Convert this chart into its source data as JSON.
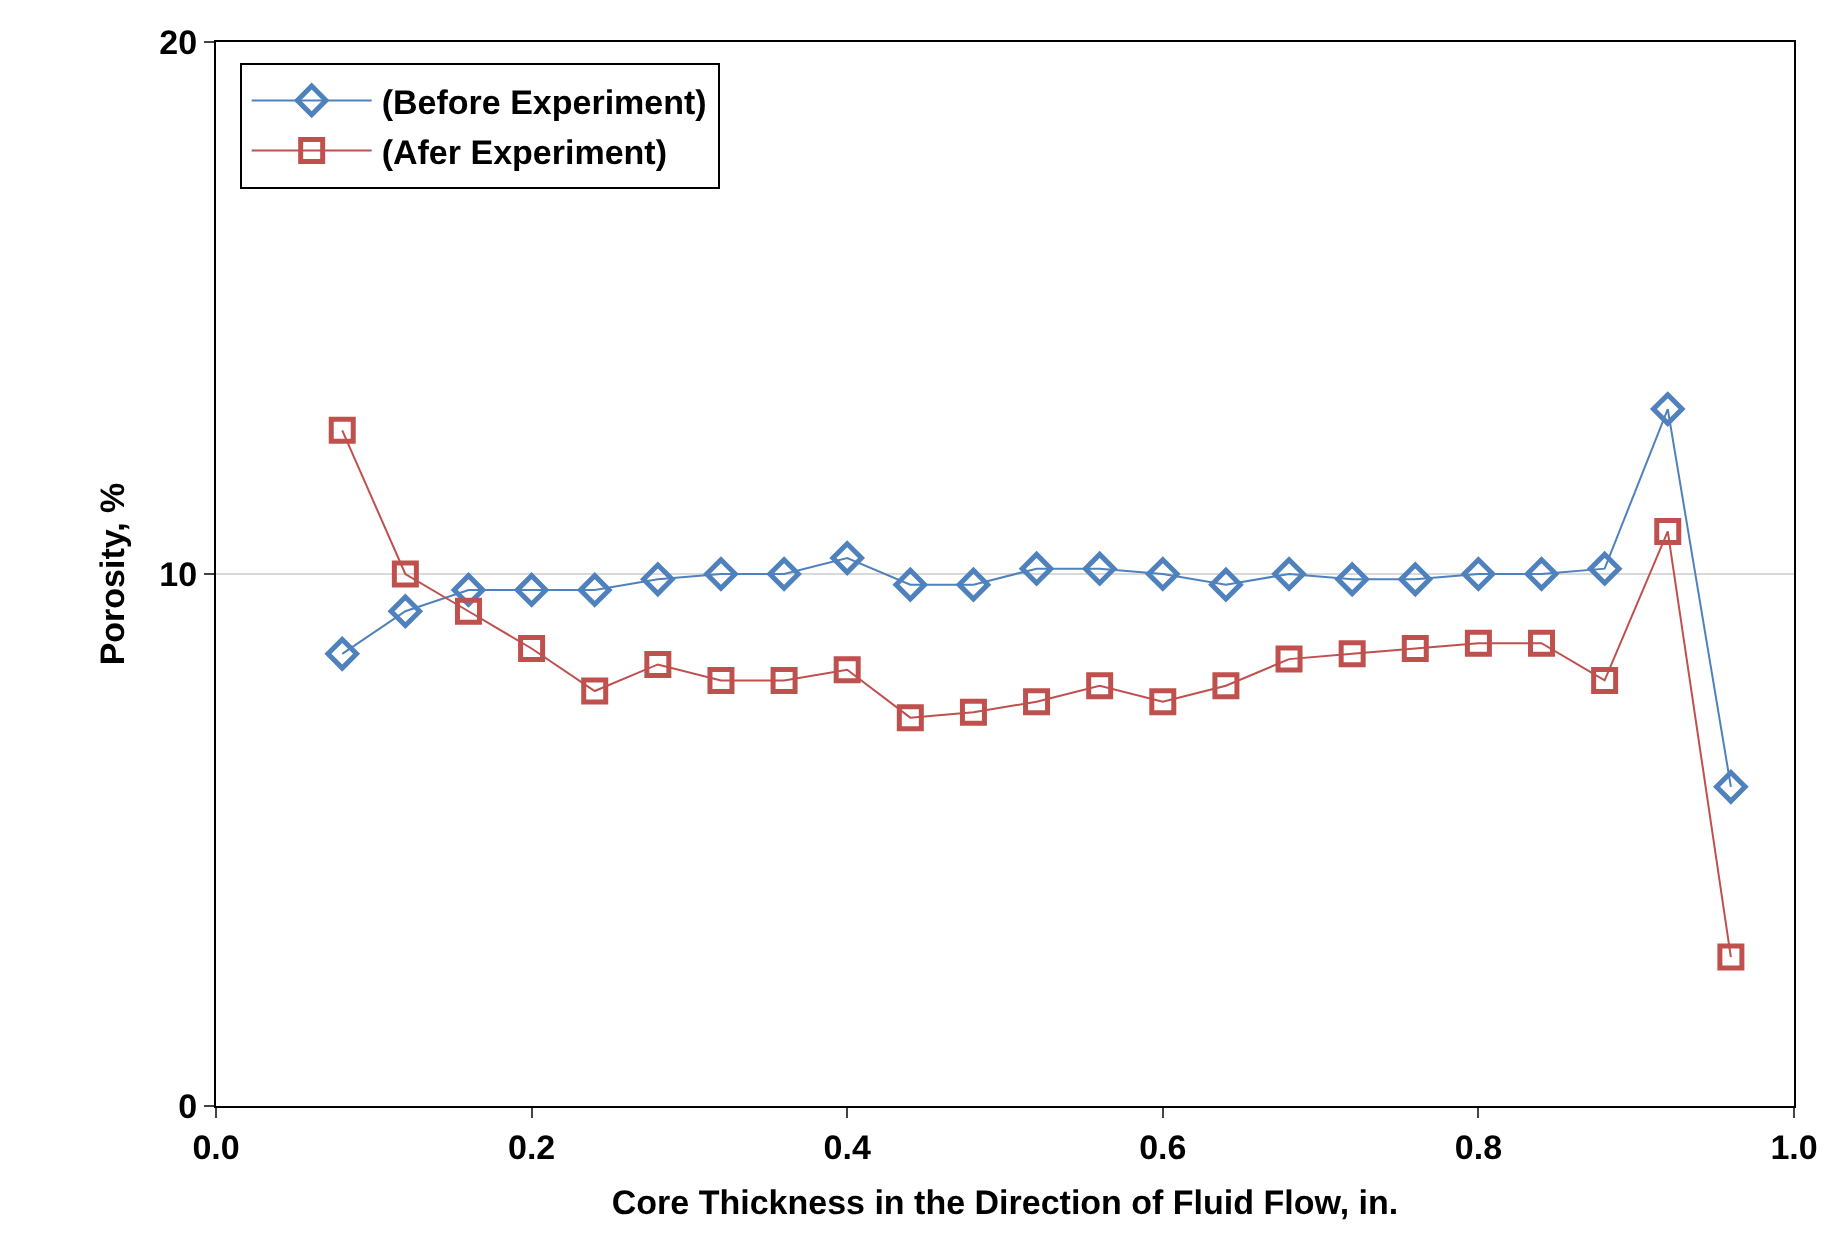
{
  "chart_data": {
    "type": "line",
    "xlabel": "Core Thickness in the Direction of Fluid Flow, in.",
    "ylabel": "Porosity, %",
    "xlim": [
      0,
      1
    ],
    "xticks": [
      {
        "value": 0,
        "label": "0.0"
      },
      {
        "value": 0.2,
        "label": "0.2"
      },
      {
        "value": 0.4,
        "label": "0.4"
      },
      {
        "value": 0.6,
        "label": "0.6"
      },
      {
        "value": 0.8,
        "label": "0.8"
      },
      {
        "value": 1,
        "label": "1.0"
      }
    ],
    "ylim": [
      0,
      20
    ],
    "yticks": [
      0,
      10,
      20
    ],
    "grid": "y",
    "legend": "top left",
    "line_style": "solid",
    "x": [
      0.08,
      0.12,
      0.16,
      0.2,
      0.24,
      0.28,
      0.32,
      0.36,
      0.4,
      0.44,
      0.48,
      0.52,
      0.56,
      0.6,
      0.64,
      0.68,
      0.72,
      0.76,
      0.8,
      0.84,
      0.88,
      0.92,
      0.96
    ],
    "series": [
      {
        "name": "(Before Experiment)",
        "color": "#4f81bd",
        "marker": "diamond",
        "values": [
          8.5,
          9.3,
          9.7,
          9.7,
          9.7,
          9.9,
          10.0,
          10.0,
          10.3,
          9.8,
          9.8,
          10.1,
          10.1,
          10.0,
          9.8,
          10.0,
          9.9,
          9.9,
          10.0,
          10.0,
          10.1,
          13.1,
          6.0
        ]
      },
      {
        "name": "(Afer Experiment)",
        "color": "#c0504d",
        "marker": "square",
        "values": [
          12.7,
          10.0,
          9.3,
          8.6,
          7.8,
          8.3,
          8.0,
          8.0,
          8.2,
          7.3,
          7.4,
          7.6,
          7.9,
          7.6,
          7.9,
          8.4,
          8.5,
          8.6,
          8.7,
          8.7,
          8.0,
          10.8,
          2.8
        ]
      }
    ]
  }
}
